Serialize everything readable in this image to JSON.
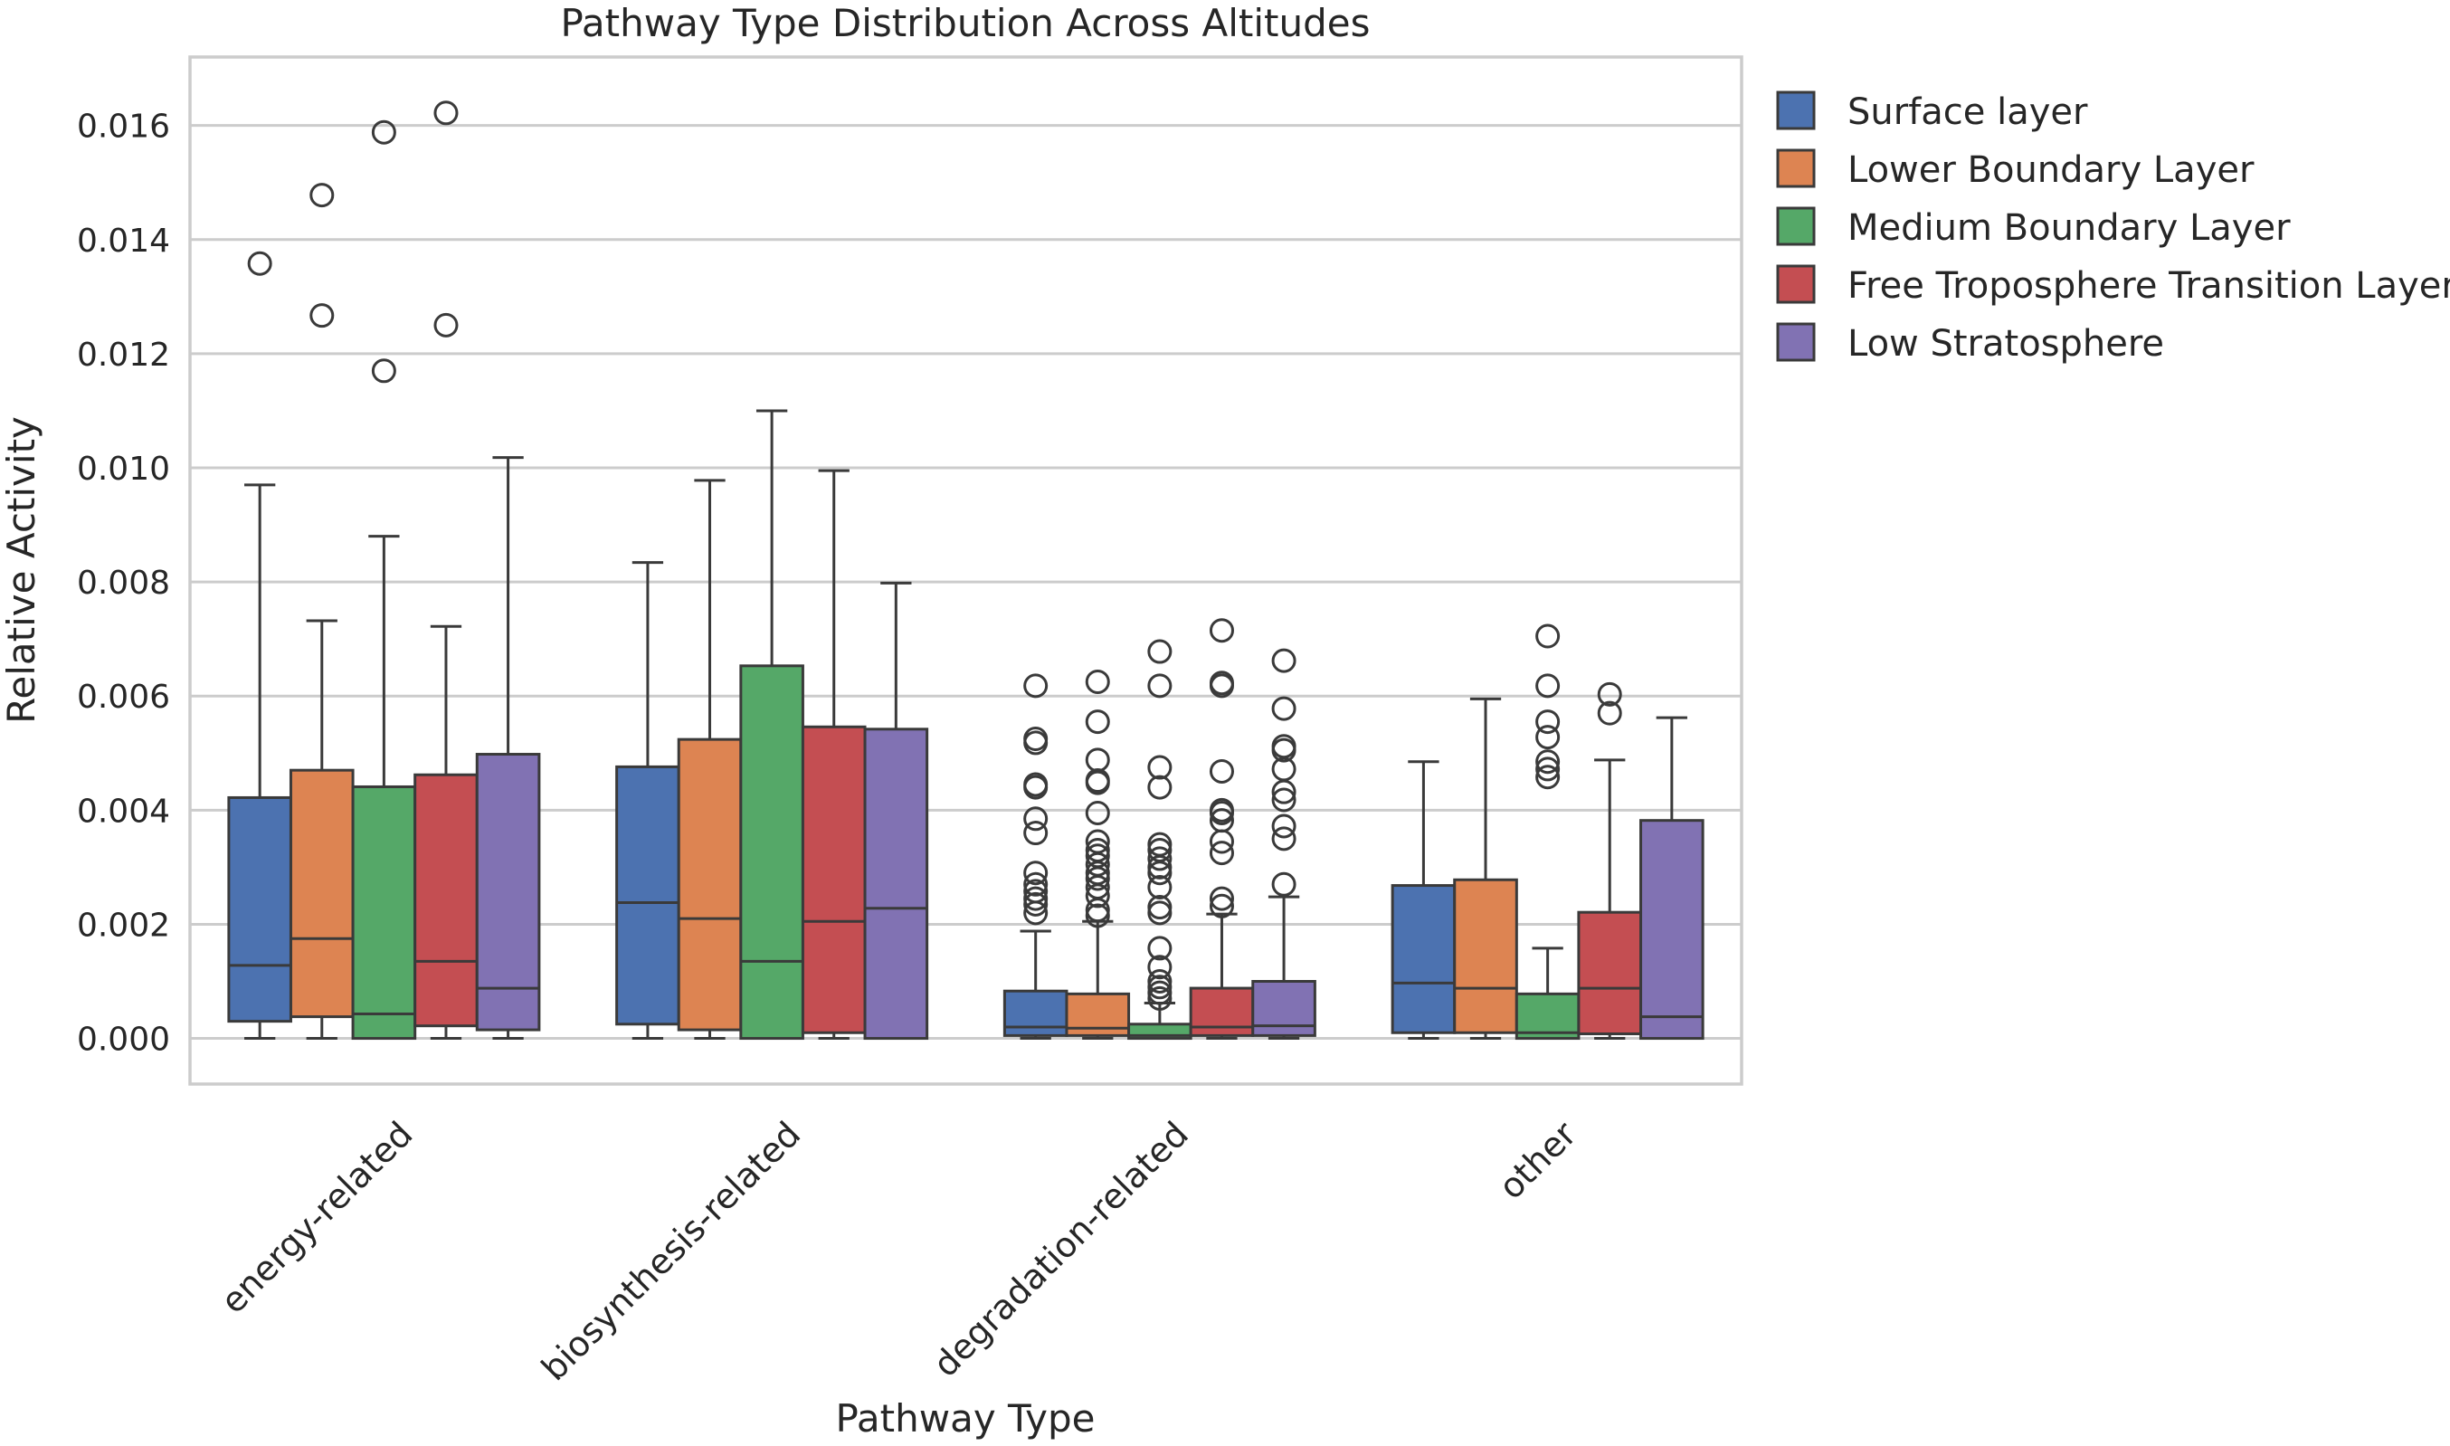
{
  "chart_data": {
    "type": "boxplot",
    "title": "Pathway Type Distribution Across Altitudes",
    "xlabel": "Pathway Type",
    "ylabel": "Relative Activity",
    "ylim": [
      -0.0008,
      0.0172
    ],
    "yticks": [
      "0.000",
      "0.002",
      "0.004",
      "0.006",
      "0.008",
      "0.010",
      "0.012",
      "0.014",
      "0.016"
    ],
    "ytick_values": [
      0,
      0.002,
      0.004,
      0.006,
      0.008,
      0.01,
      0.012,
      0.014,
      0.016
    ],
    "grid": true,
    "legend_position": "outside-right",
    "categories": [
      "energy-related",
      "biosynthesis-related",
      "degradation-related",
      "other"
    ],
    "series": [
      {
        "name": "Surface layer",
        "color": "#4c72b0",
        "boxes": [
          {
            "whisker_low": 0.0,
            "q1": 0.0003,
            "median": 0.00128,
            "q3": 0.00422,
            "whisker_high": 0.0097,
            "outliers": [
              0.01358
            ]
          },
          {
            "whisker_low": 0.0,
            "q1": 0.00025,
            "median": 0.00238,
            "q3": 0.00476,
            "whisker_high": 0.00834,
            "outliers": []
          },
          {
            "whisker_low": 0.0,
            "q1": 5e-05,
            "median": 0.0002,
            "q3": 0.00083,
            "whisker_high": 0.00188,
            "outliers": [
              0.00618,
              0.00525,
              0.00518,
              0.00445,
              0.0044,
              0.00385,
              0.0036,
              0.0029,
              0.0027,
              0.00258,
              0.00245,
              0.00235,
              0.0022
            ]
          },
          {
            "whisker_low": 0.0,
            "q1": 0.0001,
            "median": 0.00097,
            "q3": 0.00268,
            "whisker_high": 0.00485,
            "outliers": []
          }
        ]
      },
      {
        "name": "Lower Boundary Layer",
        "color": "#dd8452",
        "boxes": [
          {
            "whisker_low": 0.0,
            "q1": 0.00038,
            "median": 0.00175,
            "q3": 0.0047,
            "whisker_high": 0.00732,
            "outliers": [
              0.01478,
              0.01267
            ]
          },
          {
            "whisker_low": 0.0,
            "q1": 0.00015,
            "median": 0.0021,
            "q3": 0.00524,
            "whisker_high": 0.00978,
            "outliers": []
          },
          {
            "whisker_low": 0.0,
            "q1": 5e-05,
            "median": 0.00018,
            "q3": 0.00078,
            "whisker_high": 0.00205,
            "outliers": [
              0.00625,
              0.00555,
              0.00488,
              0.00452,
              0.00448,
              0.00395,
              0.00345,
              0.0033,
              0.0032,
              0.00305,
              0.0029,
              0.0028,
              0.00265,
              0.0025,
              0.00225,
              0.00215
            ]
          },
          {
            "whisker_low": 0.0,
            "q1": 0.0001,
            "median": 0.00088,
            "q3": 0.00278,
            "whisker_high": 0.00595,
            "outliers": []
          }
        ]
      },
      {
        "name": "Medium Boundary Layer",
        "color": "#55a868",
        "boxes": [
          {
            "whisker_low": 0.0,
            "q1": 0.0,
            "median": 0.00043,
            "q3": 0.00441,
            "whisker_high": 0.0088,
            "outliers": [
              0.01588,
              0.0117
            ]
          },
          {
            "whisker_low": 0.0,
            "q1": 0.0,
            "median": 0.00135,
            "q3": 0.00653,
            "whisker_high": 0.011,
            "outliers": []
          },
          {
            "whisker_low": 0.0,
            "q1": 0.0,
            "median": 5e-05,
            "q3": 0.00025,
            "whisker_high": 0.00062,
            "outliers": [
              0.00678,
              0.00618,
              0.00475,
              0.0044,
              0.0034,
              0.0033,
              0.00315,
              0.003,
              0.0029,
              0.00265,
              0.0023,
              0.0022,
              0.00158,
              0.00125,
              0.001,
              0.0009,
              0.0008,
              0.0007
            ]
          },
          {
            "whisker_low": 0.0,
            "q1": 0.0,
            "median": 0.0001,
            "q3": 0.00078,
            "whisker_high": 0.00158,
            "outliers": [
              0.00705,
              0.00618,
              0.00555,
              0.00528,
              0.00485,
              0.00472,
              0.00458
            ]
          }
        ]
      },
      {
        "name": "Free Troposphere Transition Layer",
        "color": "#c44e52",
        "boxes": [
          {
            "whisker_low": 0.0,
            "q1": 0.00022,
            "median": 0.00135,
            "q3": 0.00462,
            "whisker_high": 0.00722,
            "outliers": [
              0.01622,
              0.0125
            ]
          },
          {
            "whisker_low": 0.0,
            "q1": 0.0001,
            "median": 0.00205,
            "q3": 0.00546,
            "whisker_high": 0.00995,
            "outliers": []
          },
          {
            "whisker_low": 0.0,
            "q1": 5e-05,
            "median": 0.0002,
            "q3": 0.00088,
            "whisker_high": 0.00218,
            "outliers": [
              0.00715,
              0.00623,
              0.00618,
              0.00468,
              0.004,
              0.00395,
              0.00382,
              0.00345,
              0.00325,
              0.00245,
              0.00232
            ]
          },
          {
            "whisker_low": 0.0,
            "q1": 8e-05,
            "median": 0.00088,
            "q3": 0.00221,
            "whisker_high": 0.00488,
            "outliers": [
              0.00603,
              0.0057
            ]
          }
        ]
      },
      {
        "name": "Low Stratosphere",
        "color": "#8172b3",
        "boxes": [
          {
            "whisker_low": 0.0,
            "q1": 0.00015,
            "median": 0.00088,
            "q3": 0.00498,
            "whisker_high": 0.01018,
            "outliers": []
          },
          {
            "whisker_low": 0.0,
            "q1": 0.0,
            "median": 0.00228,
            "q3": 0.00542,
            "whisker_high": 0.00798,
            "outliers": []
          },
          {
            "whisker_low": 0.0,
            "q1": 5e-05,
            "median": 0.00022,
            "q3": 0.001,
            "whisker_high": 0.00248,
            "outliers": [
              0.00662,
              0.00578,
              0.00512,
              0.00505,
              0.00472,
              0.00432,
              0.00418,
              0.00372,
              0.0035,
              0.0027
            ]
          },
          {
            "whisker_low": 0.0,
            "q1": 0.0,
            "median": 0.00038,
            "q3": 0.00382,
            "whisker_high": 0.00562,
            "outliers": []
          }
        ]
      }
    ]
  }
}
